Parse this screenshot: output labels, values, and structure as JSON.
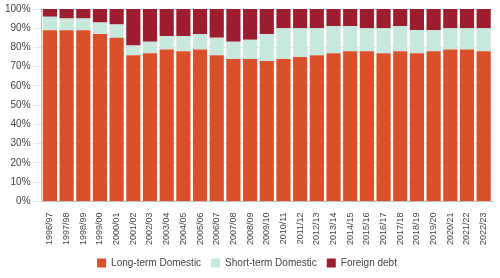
{
  "chart_data": {
    "type": "bar",
    "categories": [
      "1996/97",
      "1997/98",
      "1998/99",
      "1999/00",
      "2000/01",
      "2001/02",
      "2002/03",
      "2003/04",
      "2004/05",
      "2005/06",
      "2006/07",
      "2007/08",
      "2008/09",
      "2009/10",
      "2010/11",
      "2011/12",
      "2012/13",
      "2013/14",
      "2014/15",
      "2015/16",
      "2016/17",
      "2017/18",
      "2018/19",
      "2019/20",
      "2020/21",
      "2021/22",
      "2022/23"
    ],
    "series": [
      {
        "name": "Long-term Domestic",
        "color": "#d9502b",
        "values": [
          89,
          89,
          89,
          87,
          85,
          76,
          77,
          79,
          78,
          79,
          76,
          74,
          74,
          73,
          74,
          75,
          76,
          77,
          78,
          78,
          77,
          78,
          77,
          78,
          79,
          79,
          78
        ]
      },
      {
        "name": "Short-term Domestic",
        "color": "#c8e8de",
        "values": [
          7,
          6,
          6,
          6,
          7,
          5,
          6,
          7,
          8,
          8,
          9,
          9,
          10,
          14,
          16,
          15,
          14,
          14,
          13,
          12,
          13,
          13,
          12,
          11,
          11,
          11,
          12
        ]
      },
      {
        "name": "Foreign debt",
        "color": "#9c1d30",
        "values": [
          4,
          5,
          5,
          7,
          8,
          19,
          17,
          14,
          14,
          13,
          15,
          17,
          16,
          13,
          10,
          10,
          10,
          9,
          9,
          10,
          10,
          9,
          11,
          11,
          10,
          10,
          10
        ]
      }
    ],
    "ylim": [
      0,
      100
    ],
    "yticks": [
      {
        "value": 0,
        "label": "0%"
      },
      {
        "value": 10,
        "label": "10%"
      },
      {
        "value": 20,
        "label": "20%"
      },
      {
        "value": 30,
        "label": "30%"
      },
      {
        "value": 40,
        "label": "40%"
      },
      {
        "value": 50,
        "label": "50%"
      },
      {
        "value": 60,
        "label": "60%"
      },
      {
        "value": 70,
        "label": "70%"
      },
      {
        "value": 80,
        "label": "80%"
      },
      {
        "value": 90,
        "label": "90%"
      },
      {
        "value": 100,
        "label": "100%"
      }
    ],
    "stacked": true,
    "grid": true,
    "legend": "bottom"
  }
}
